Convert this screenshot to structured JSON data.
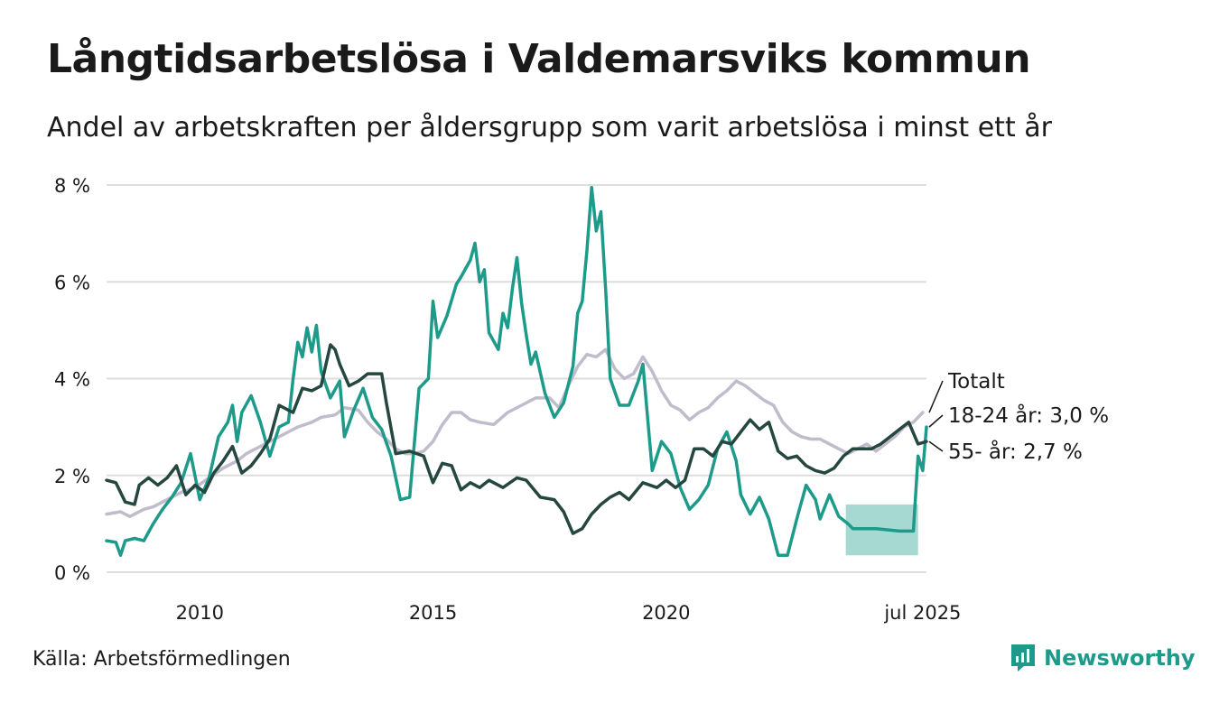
{
  "header": {
    "title": "Långtidsarbetslösa i Valdemarsviks kommun",
    "subtitle": "Andel av arbetskraften per åldersgrupp som varit arbetslösa i minst ett år"
  },
  "footer": {
    "source": "Källa: Arbetsförmedlingen",
    "brand": "Newsworthy"
  },
  "colors": {
    "total": "#c1bccb",
    "age_18_24": "#1e9a8a",
    "age_55": "#25473f",
    "band": "#a6d9d1",
    "grid": "#dddddd"
  },
  "chart_data": {
    "type": "line",
    "xlim": [
      2008.0,
      2025.58
    ],
    "ylim": [
      0,
      8
    ],
    "y_ticks": [
      {
        "value": 0,
        "label": "0 %"
      },
      {
        "value": 2,
        "label": "2 %"
      },
      {
        "value": 4,
        "label": "4 %"
      },
      {
        "value": 6,
        "label": "6 %"
      },
      {
        "value": 8,
        "label": "8 %"
      }
    ],
    "x_ticks": [
      {
        "value": 2010,
        "label": "2010"
      },
      {
        "value": 2015,
        "label": "2015"
      },
      {
        "value": 2020,
        "label": "2020"
      },
      {
        "value": 2025.5,
        "label": "jul 2025"
      }
    ],
    "end_labels": [
      {
        "series": "Totalt",
        "text": "Totalt",
        "y": 3.3
      },
      {
        "series": "18-24 år",
        "text": "18-24 år: 3,0 %",
        "y": 3.0
      },
      {
        "series": "55- år",
        "text": "55- år: 2,7 %",
        "y": 2.7
      }
    ],
    "uncertainty_band": {
      "series": "18-24 år",
      "x_start": 2023.85,
      "x_end": 2025.4,
      "low": 0.35,
      "high": 1.4
    },
    "series": [
      {
        "name": "Totalt",
        "color_key": "total",
        "points": [
          [
            2008.0,
            1.2
          ],
          [
            2008.3,
            1.25
          ],
          [
            2008.5,
            1.15
          ],
          [
            2008.8,
            1.3
          ],
          [
            2009.0,
            1.35
          ],
          [
            2009.3,
            1.5
          ],
          [
            2009.6,
            1.65
          ],
          [
            2009.9,
            1.75
          ],
          [
            2010.2,
            1.95
          ],
          [
            2010.5,
            2.15
          ],
          [
            2010.8,
            2.3
          ],
          [
            2011.0,
            2.45
          ],
          [
            2011.3,
            2.6
          ],
          [
            2011.6,
            2.75
          ],
          [
            2011.9,
            2.9
          ],
          [
            2012.1,
            3.0
          ],
          [
            2012.4,
            3.1
          ],
          [
            2012.6,
            3.2
          ],
          [
            2012.9,
            3.25
          ],
          [
            2013.1,
            3.4
          ],
          [
            2013.4,
            3.35
          ],
          [
            2013.6,
            3.1
          ],
          [
            2013.8,
            2.9
          ],
          [
            2014.0,
            2.75
          ],
          [
            2014.2,
            2.55
          ],
          [
            2014.4,
            2.45
          ],
          [
            2014.6,
            2.45
          ],
          [
            2014.8,
            2.5
          ],
          [
            2015.0,
            2.7
          ],
          [
            2015.2,
            3.05
          ],
          [
            2015.4,
            3.3
          ],
          [
            2015.6,
            3.3
          ],
          [
            2015.8,
            3.15
          ],
          [
            2016.0,
            3.1
          ],
          [
            2016.3,
            3.05
          ],
          [
            2016.6,
            3.3
          ],
          [
            2016.9,
            3.45
          ],
          [
            2017.2,
            3.6
          ],
          [
            2017.5,
            3.6
          ],
          [
            2017.7,
            3.4
          ],
          [
            2017.9,
            3.85
          ],
          [
            2018.1,
            4.25
          ],
          [
            2018.3,
            4.5
          ],
          [
            2018.5,
            4.45
          ],
          [
            2018.7,
            4.6
          ],
          [
            2018.9,
            4.2
          ],
          [
            2019.1,
            4.0
          ],
          [
            2019.3,
            4.1
          ],
          [
            2019.5,
            4.45
          ],
          [
            2019.7,
            4.15
          ],
          [
            2019.9,
            3.75
          ],
          [
            2020.1,
            3.45
          ],
          [
            2020.3,
            3.35
          ],
          [
            2020.5,
            3.15
          ],
          [
            2020.7,
            3.3
          ],
          [
            2020.9,
            3.4
          ],
          [
            2021.1,
            3.6
          ],
          [
            2021.3,
            3.75
          ],
          [
            2021.5,
            3.95
          ],
          [
            2021.7,
            3.85
          ],
          [
            2021.9,
            3.7
          ],
          [
            2022.1,
            3.55
          ],
          [
            2022.3,
            3.45
          ],
          [
            2022.5,
            3.1
          ],
          [
            2022.7,
            2.9
          ],
          [
            2022.9,
            2.8
          ],
          [
            2023.1,
            2.75
          ],
          [
            2023.3,
            2.75
          ],
          [
            2023.5,
            2.65
          ],
          [
            2023.7,
            2.55
          ],
          [
            2023.9,
            2.45
          ],
          [
            2024.1,
            2.55
          ],
          [
            2024.3,
            2.65
          ],
          [
            2024.5,
            2.5
          ],
          [
            2024.7,
            2.65
          ],
          [
            2024.9,
            2.8
          ],
          [
            2025.1,
            3.0
          ],
          [
            2025.3,
            3.1
          ],
          [
            2025.5,
            3.3
          ]
        ]
      },
      {
        "name": "18-24 år",
        "color_key": "age_18_24",
        "points": [
          [
            2008.0,
            0.65
          ],
          [
            2008.2,
            0.62
          ],
          [
            2008.3,
            0.35
          ],
          [
            2008.4,
            0.65
          ],
          [
            2008.6,
            0.7
          ],
          [
            2008.8,
            0.65
          ],
          [
            2009.0,
            1.0
          ],
          [
            2009.2,
            1.3
          ],
          [
            2009.4,
            1.55
          ],
          [
            2009.6,
            1.85
          ],
          [
            2009.8,
            2.45
          ],
          [
            2010.0,
            1.5
          ],
          [
            2010.2,
            1.95
          ],
          [
            2010.4,
            2.8
          ],
          [
            2010.6,
            3.1
          ],
          [
            2010.7,
            3.45
          ],
          [
            2010.8,
            2.7
          ],
          [
            2010.9,
            3.3
          ],
          [
            2011.1,
            3.65
          ],
          [
            2011.3,
            3.1
          ],
          [
            2011.5,
            2.4
          ],
          [
            2011.7,
            3.0
          ],
          [
            2011.9,
            3.1
          ],
          [
            2012.0,
            4.0
          ],
          [
            2012.1,
            4.75
          ],
          [
            2012.2,
            4.45
          ],
          [
            2012.3,
            5.05
          ],
          [
            2012.4,
            4.55
          ],
          [
            2012.5,
            5.1
          ],
          [
            2012.6,
            4.15
          ],
          [
            2012.8,
            3.6
          ],
          [
            2013.0,
            3.95
          ],
          [
            2013.1,
            2.8
          ],
          [
            2013.3,
            3.35
          ],
          [
            2013.5,
            3.8
          ],
          [
            2013.7,
            3.2
          ],
          [
            2013.9,
            2.95
          ],
          [
            2014.1,
            2.4
          ],
          [
            2014.3,
            1.5
          ],
          [
            2014.5,
            1.55
          ],
          [
            2014.7,
            3.8
          ],
          [
            2014.9,
            4.0
          ],
          [
            2015.0,
            5.6
          ],
          [
            2015.1,
            4.85
          ],
          [
            2015.3,
            5.3
          ],
          [
            2015.5,
            5.95
          ],
          [
            2015.6,
            6.1
          ],
          [
            2015.8,
            6.45
          ],
          [
            2015.9,
            6.8
          ],
          [
            2016.0,
            6.0
          ],
          [
            2016.1,
            6.25
          ],
          [
            2016.2,
            4.95
          ],
          [
            2016.4,
            4.6
          ],
          [
            2016.5,
            5.35
          ],
          [
            2016.6,
            5.05
          ],
          [
            2016.7,
            5.85
          ],
          [
            2016.8,
            6.5
          ],
          [
            2016.9,
            5.55
          ],
          [
            2017.0,
            4.9
          ],
          [
            2017.1,
            4.3
          ],
          [
            2017.2,
            4.55
          ],
          [
            2017.4,
            3.7
          ],
          [
            2017.6,
            3.2
          ],
          [
            2017.8,
            3.5
          ],
          [
            2018.0,
            4.25
          ],
          [
            2018.1,
            5.35
          ],
          [
            2018.2,
            5.6
          ],
          [
            2018.3,
            6.65
          ],
          [
            2018.4,
            7.95
          ],
          [
            2018.5,
            7.05
          ],
          [
            2018.6,
            7.45
          ],
          [
            2018.7,
            5.85
          ],
          [
            2018.8,
            4.0
          ],
          [
            2019.0,
            3.45
          ],
          [
            2019.2,
            3.45
          ],
          [
            2019.4,
            3.95
          ],
          [
            2019.5,
            4.3
          ],
          [
            2019.7,
            2.1
          ],
          [
            2019.9,
            2.7
          ],
          [
            2020.1,
            2.45
          ],
          [
            2020.3,
            1.75
          ],
          [
            2020.5,
            1.3
          ],
          [
            2020.7,
            1.5
          ],
          [
            2020.9,
            1.8
          ],
          [
            2021.1,
            2.55
          ],
          [
            2021.3,
            2.9
          ],
          [
            2021.5,
            2.3
          ],
          [
            2021.6,
            1.6
          ],
          [
            2021.8,
            1.2
          ],
          [
            2022.0,
            1.55
          ],
          [
            2022.2,
            1.1
          ],
          [
            2022.4,
            0.35
          ],
          [
            2022.6,
            0.35
          ],
          [
            2022.8,
            1.1
          ],
          [
            2023.0,
            1.8
          ],
          [
            2023.2,
            1.5
          ],
          [
            2023.3,
            1.1
          ],
          [
            2023.5,
            1.6
          ],
          [
            2023.7,
            1.15
          ],
          [
            2023.9,
            1.0
          ],
          [
            2024.0,
            0.9
          ],
          [
            2024.5,
            0.9
          ],
          [
            2025.0,
            0.85
          ],
          [
            2025.3,
            0.85
          ],
          [
            2025.4,
            2.4
          ],
          [
            2025.5,
            2.1
          ],
          [
            2025.58,
            3.0
          ]
        ]
      },
      {
        "name": "55- år",
        "color_key": "age_55",
        "points": [
          [
            2008.0,
            1.9
          ],
          [
            2008.2,
            1.85
          ],
          [
            2008.4,
            1.45
          ],
          [
            2008.6,
            1.4
          ],
          [
            2008.7,
            1.8
          ],
          [
            2008.9,
            1.95
          ],
          [
            2009.1,
            1.8
          ],
          [
            2009.3,
            1.95
          ],
          [
            2009.5,
            2.2
          ],
          [
            2009.7,
            1.6
          ],
          [
            2009.9,
            1.8
          ],
          [
            2010.1,
            1.65
          ],
          [
            2010.3,
            2.05
          ],
          [
            2010.5,
            2.3
          ],
          [
            2010.7,
            2.6
          ],
          [
            2010.9,
            2.05
          ],
          [
            2011.1,
            2.2
          ],
          [
            2011.3,
            2.45
          ],
          [
            2011.5,
            2.75
          ],
          [
            2011.7,
            3.45
          ],
          [
            2011.9,
            3.35
          ],
          [
            2012.0,
            3.3
          ],
          [
            2012.2,
            3.8
          ],
          [
            2012.4,
            3.75
          ],
          [
            2012.6,
            3.85
          ],
          [
            2012.8,
            4.7
          ],
          [
            2012.9,
            4.6
          ],
          [
            2013.0,
            4.3
          ],
          [
            2013.2,
            3.85
          ],
          [
            2013.4,
            3.95
          ],
          [
            2013.6,
            4.1
          ],
          [
            2013.9,
            4.1
          ],
          [
            2014.0,
            3.5
          ],
          [
            2014.2,
            2.45
          ],
          [
            2014.5,
            2.5
          ],
          [
            2014.8,
            2.4
          ],
          [
            2015.0,
            1.85
          ],
          [
            2015.2,
            2.25
          ],
          [
            2015.4,
            2.2
          ],
          [
            2015.6,
            1.7
          ],
          [
            2015.8,
            1.85
          ],
          [
            2016.0,
            1.75
          ],
          [
            2016.2,
            1.9
          ],
          [
            2016.5,
            1.75
          ],
          [
            2016.8,
            1.95
          ],
          [
            2017.0,
            1.9
          ],
          [
            2017.3,
            1.55
          ],
          [
            2017.6,
            1.5
          ],
          [
            2017.8,
            1.25
          ],
          [
            2018.0,
            0.8
          ],
          [
            2018.2,
            0.9
          ],
          [
            2018.4,
            1.2
          ],
          [
            2018.6,
            1.4
          ],
          [
            2018.8,
            1.55
          ],
          [
            2019.0,
            1.65
          ],
          [
            2019.2,
            1.5
          ],
          [
            2019.5,
            1.85
          ],
          [
            2019.8,
            1.75
          ],
          [
            2020.0,
            1.9
          ],
          [
            2020.2,
            1.75
          ],
          [
            2020.4,
            1.9
          ],
          [
            2020.6,
            2.55
          ],
          [
            2020.8,
            2.55
          ],
          [
            2021.0,
            2.4
          ],
          [
            2021.2,
            2.7
          ],
          [
            2021.4,
            2.65
          ],
          [
            2021.6,
            2.9
          ],
          [
            2021.8,
            3.15
          ],
          [
            2022.0,
            2.95
          ],
          [
            2022.2,
            3.1
          ],
          [
            2022.4,
            2.5
          ],
          [
            2022.6,
            2.35
          ],
          [
            2022.8,
            2.4
          ],
          [
            2023.0,
            2.2
          ],
          [
            2023.2,
            2.1
          ],
          [
            2023.4,
            2.05
          ],
          [
            2023.6,
            2.15
          ],
          [
            2023.8,
            2.4
          ],
          [
            2024.0,
            2.55
          ],
          [
            2024.2,
            2.55
          ],
          [
            2024.4,
            2.55
          ],
          [
            2024.6,
            2.65
          ],
          [
            2024.8,
            2.8
          ],
          [
            2025.0,
            2.95
          ],
          [
            2025.2,
            3.1
          ],
          [
            2025.4,
            2.65
          ],
          [
            2025.58,
            2.7
          ]
        ]
      }
    ]
  }
}
